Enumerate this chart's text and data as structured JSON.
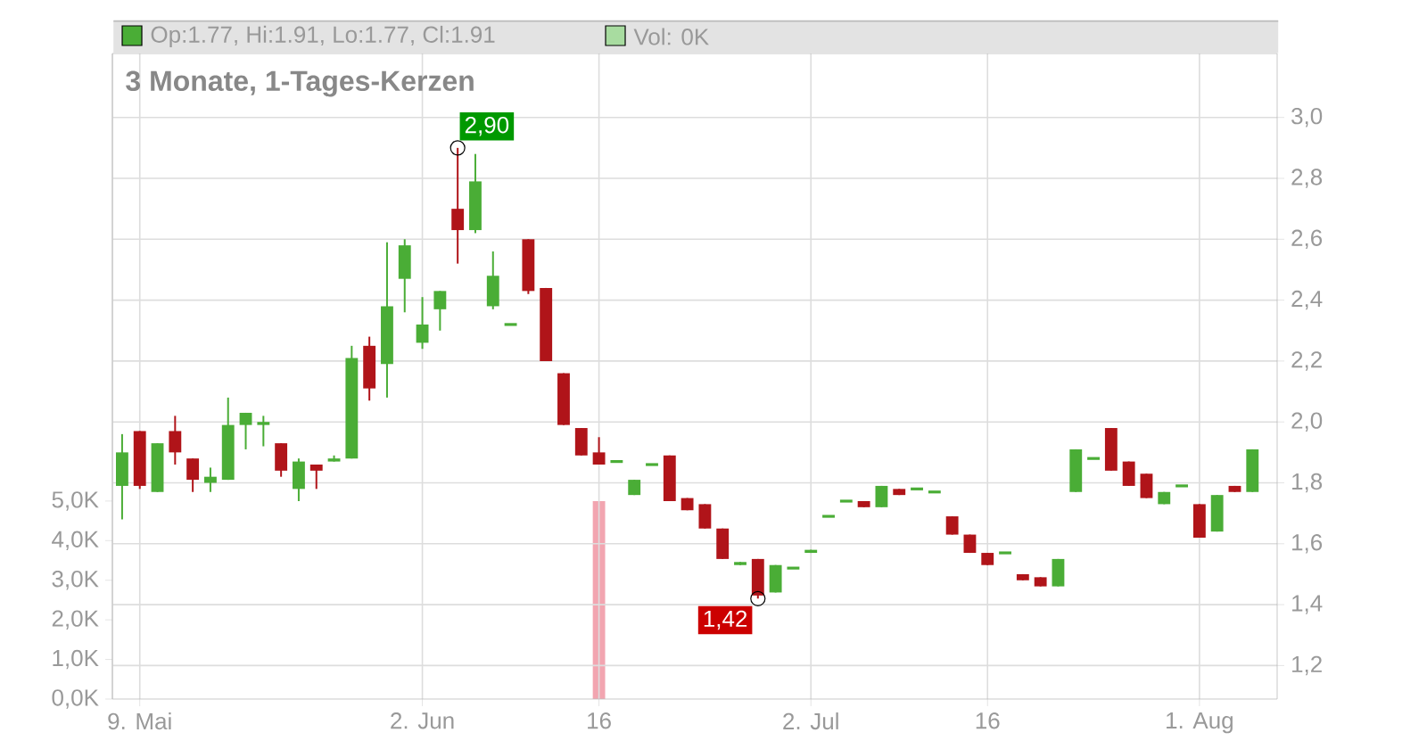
{
  "chart_data": {
    "type": "candlestick",
    "title": "3 Monate, 1-Tages-Kerzen",
    "categories": [
      null,
      "9. Mai",
      null,
      null,
      null,
      null,
      null,
      null,
      null,
      null,
      null,
      null,
      null,
      null,
      null,
      null,
      null,
      "2. Jun",
      null,
      null,
      null,
      null,
      null,
      null,
      null,
      null,
      null,
      "16",
      null,
      null,
      null,
      null,
      null,
      null,
      null,
      null,
      null,
      null,
      null,
      "2. Jul",
      null,
      null,
      null,
      null,
      null,
      null,
      null,
      null,
      null,
      "16",
      null,
      null,
      null,
      null,
      null,
      null,
      null,
      null,
      null,
      null,
      null,
      "1. Aug",
      null,
      null,
      null
    ],
    "series": [
      {
        "ohlc": [
          [
            1.79,
            1.96,
            1.68,
            1.9
          ],
          [
            1.97,
            1.97,
            1.78,
            1.79
          ],
          [
            1.77,
            1.93,
            1.77,
            1.93
          ],
          [
            1.97,
            2.02,
            1.86,
            1.9
          ],
          [
            1.88,
            1.88,
            1.77,
            1.81
          ],
          [
            1.8,
            1.85,
            1.77,
            1.82
          ],
          [
            1.81,
            2.08,
            1.81,
            1.99
          ],
          [
            1.99,
            2.03,
            1.91,
            2.03
          ],
          [
            1.99,
            2.02,
            1.92,
            2.0
          ],
          [
            1.93,
            1.93,
            1.82,
            1.84
          ],
          [
            1.78,
            1.88,
            1.74,
            1.87
          ],
          [
            1.86,
            1.86,
            1.78,
            1.84
          ],
          [
            1.87,
            1.89,
            1.87,
            1.88
          ],
          [
            1.88,
            2.25,
            1.88,
            2.21
          ],
          [
            2.25,
            2.28,
            2.07,
            2.11
          ],
          [
            2.19,
            2.59,
            2.08,
            2.38
          ],
          [
            2.47,
            2.6,
            2.36,
            2.58
          ],
          [
            2.26,
            2.41,
            2.24,
            2.32
          ],
          [
            2.37,
            2.43,
            2.3,
            2.43
          ],
          [
            2.7,
            2.9,
            2.52,
            2.63
          ],
          [
            2.63,
            2.88,
            2.62,
            2.79
          ],
          [
            2.38,
            2.56,
            2.37,
            2.48
          ],
          [
            2.32,
            2.32,
            2.32,
            2.32
          ],
          [
            2.6,
            2.6,
            2.42,
            2.43
          ],
          [
            2.44,
            2.44,
            2.2,
            2.2
          ],
          [
            2.16,
            2.16,
            1.99,
            1.99
          ],
          [
            1.98,
            1.98,
            1.89,
            1.89
          ],
          [
            1.9,
            1.95,
            1.86,
            1.86
          ],
          [
            1.87,
            1.87,
            1.87,
            1.87
          ],
          [
            1.76,
            1.81,
            1.76,
            1.81
          ],
          [
            1.86,
            1.86,
            1.86,
            1.86
          ],
          [
            1.89,
            1.89,
            1.74,
            1.74
          ],
          [
            1.75,
            1.75,
            1.71,
            1.71
          ],
          [
            1.73,
            1.73,
            1.65,
            1.65
          ],
          [
            1.65,
            1.65,
            1.55,
            1.55
          ],
          [
            1.53,
            1.54,
            1.53,
            1.54
          ],
          [
            1.55,
            1.55,
            1.42,
            1.43
          ],
          [
            1.44,
            1.53,
            1.44,
            1.53
          ],
          [
            1.52,
            1.52,
            1.52,
            1.52
          ],
          [
            1.57,
            1.58,
            1.57,
            1.58
          ],
          [
            1.69,
            1.69,
            1.69,
            1.69
          ],
          [
            1.74,
            1.74,
            1.74,
            1.74
          ],
          [
            1.74,
            1.74,
            1.72,
            1.72
          ],
          [
            1.72,
            1.79,
            1.72,
            1.79
          ],
          [
            1.78,
            1.78,
            1.76,
            1.76
          ],
          [
            1.78,
            1.78,
            1.78,
            1.78
          ],
          [
            1.77,
            1.77,
            1.77,
            1.77
          ],
          [
            1.69,
            1.69,
            1.63,
            1.63
          ],
          [
            1.63,
            1.63,
            1.57,
            1.57
          ],
          [
            1.57,
            1.57,
            1.53,
            1.53
          ],
          [
            1.57,
            1.57,
            1.57,
            1.57
          ],
          [
            1.5,
            1.5,
            1.48,
            1.48
          ],
          [
            1.49,
            1.49,
            1.46,
            1.46
          ],
          [
            1.46,
            1.55,
            1.46,
            1.55
          ],
          [
            1.77,
            1.91,
            1.77,
            1.91
          ],
          [
            1.88,
            1.88,
            1.88,
            1.88
          ],
          [
            1.98,
            1.98,
            1.84,
            1.84
          ],
          [
            1.87,
            1.87,
            1.79,
            1.79
          ],
          [
            1.83,
            1.83,
            1.75,
            1.75
          ],
          [
            1.73,
            1.77,
            1.73,
            1.77
          ],
          [
            1.79,
            1.79,
            1.79,
            1.79
          ],
          [
            1.73,
            1.73,
            1.62,
            1.62
          ],
          [
            1.64,
            1.76,
            1.64,
            1.76
          ],
          [
            1.79,
            1.79,
            1.77,
            1.77
          ],
          [
            1.77,
            1.91,
            1.77,
            1.91
          ]
        ],
        "colors": [
          "#4aad36",
          "#b01419",
          "#4aad36",
          "#b01419",
          "#b01419",
          "#4aad36",
          "#4aad36",
          "#4aad36",
          "#4aad36",
          "#b01419",
          "#4aad36",
          "#b01419",
          "#4aad36",
          "#4aad36",
          "#b01419",
          "#4aad36",
          "#4aad36",
          "#4aad36",
          "#4aad36",
          "#b01419",
          "#4aad36",
          "#4aad36",
          "#4aad36",
          "#b01419",
          "#b01419",
          "#b01419",
          "#b01419",
          "#b01419",
          "#4aad36",
          "#4aad36",
          "#4aad36",
          "#b01419",
          "#b01419",
          "#b01419",
          "#b01419",
          "#4aad36",
          "#b01419",
          "#4aad36",
          "#4aad36",
          "#4aad36",
          "#4aad36",
          "#4aad36",
          "#b01419",
          "#4aad36",
          "#b01419",
          "#4aad36",
          "#4aad36",
          "#b01419",
          "#b01419",
          "#b01419",
          "#4aad36",
          "#b01419",
          "#b01419",
          "#4aad36",
          "#4aad36",
          "#4aad36",
          "#b01419",
          "#b01419",
          "#b01419",
          "#4aad36",
          "#4aad36",
          "#b01419",
          "#4aad36",
          "#b01419",
          "#4aad36"
        ]
      },
      {
        "type": "bar",
        "axis": "y2",
        "color": "#f2a5b0",
        "values": [
          0,
          0,
          0,
          0,
          0,
          0,
          0,
          0,
          0,
          0,
          0,
          0,
          0,
          0,
          0,
          0,
          0,
          0,
          0,
          0,
          0,
          0,
          0,
          0,
          0,
          0,
          0,
          5.0,
          0,
          0,
          0,
          0,
          0,
          0,
          0,
          0,
          0,
          0,
          0,
          0,
          0,
          0,
          0,
          0,
          0,
          0,
          0,
          0,
          0,
          0,
          0,
          0,
          0,
          0,
          0,
          0,
          0,
          0,
          0,
          0,
          0,
          0,
          0,
          0,
          0
        ]
      }
    ],
    "ylim": [
      1.09,
      3.21
    ],
    "yticks": [
      {
        "value": 1.2,
        "label": "1,2"
      },
      {
        "value": 1.4,
        "label": "1,4"
      },
      {
        "value": 1.6,
        "label": "1,6"
      },
      {
        "value": 1.8,
        "label": "1,8"
      },
      {
        "value": 2.0,
        "label": "2,0"
      },
      {
        "value": 2.2,
        "label": "2,2"
      },
      {
        "value": 2.4,
        "label": "2,4"
      },
      {
        "value": 2.6,
        "label": "2,6"
      },
      {
        "value": 2.8,
        "label": "2,8"
      },
      {
        "value": 3.0,
        "label": "3,0"
      }
    ],
    "y2lim": [
      0,
      16.3
    ],
    "y2ticks": [
      {
        "value": 0,
        "label": "0,0K"
      },
      {
        "value": 1,
        "label": "1,0K"
      },
      {
        "value": 2,
        "label": "2,0K"
      },
      {
        "value": 3,
        "label": "3,0K"
      },
      {
        "value": 4,
        "label": "4,0K"
      },
      {
        "value": 5,
        "label": "5,0K"
      }
    ],
    "grid": true,
    "annotations": [
      "Op:1.77, Hi:1.91, Lo:1.77, Cl:1.91",
      "Vol: 0K",
      "2,90",
      "1,42"
    ]
  }
}
